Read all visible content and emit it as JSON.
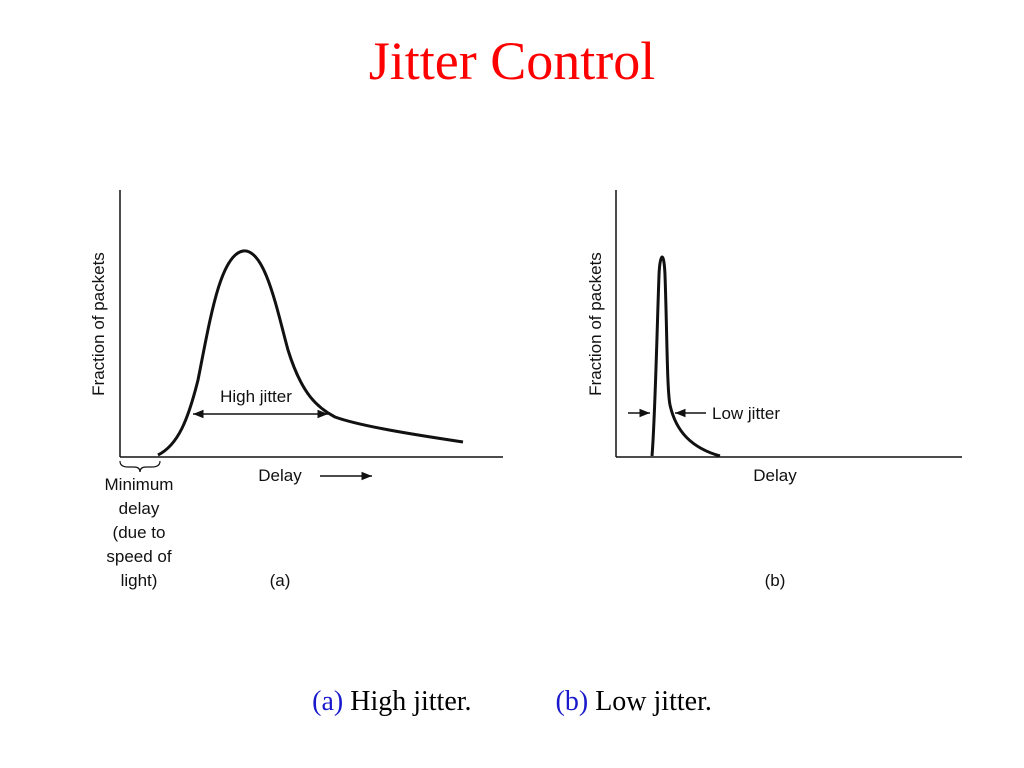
{
  "title": "Jitter Control",
  "colors": {
    "title": "#ff0000",
    "caption_tag": "#1a1acc",
    "ink": "#111111"
  },
  "figure_a": {
    "ylabel": "Fraction of packets",
    "xlabel": "Delay",
    "jitter_label": "High jitter",
    "min_delay_lines": [
      "Minimum",
      "delay",
      "(due to",
      "speed of",
      "light)"
    ],
    "panel_label": "(a)"
  },
  "figure_b": {
    "ylabel": "Fraction of packets",
    "xlabel": "Delay",
    "jitter_label": "Low jitter",
    "panel_label": "(b)"
  },
  "caption": {
    "a_tag": "(a)",
    "a_text": "High jitter.",
    "b_tag": "(b)",
    "b_text": "Low jitter."
  }
}
